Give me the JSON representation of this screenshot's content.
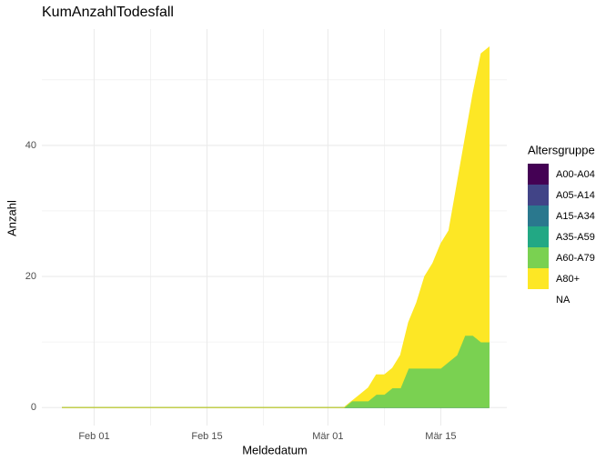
{
  "chart_data": {
    "type": "stacked_area",
    "title": "KumAnzahlTodesfall",
    "x_label": "Meldedatum",
    "y_label": "Anzahl",
    "legend_title": "Altersgruppe",
    "categories": [
      "Jan 28",
      "Jan 29",
      "Jan 30",
      "Jan 31",
      "Feb 01",
      "Feb 02",
      "Feb 03",
      "Feb 04",
      "Feb 05",
      "Feb 06",
      "Feb 07",
      "Feb 08",
      "Feb 09",
      "Feb 10",
      "Feb 11",
      "Feb 12",
      "Feb 13",
      "Feb 14",
      "Feb 15",
      "Feb 16",
      "Feb 17",
      "Feb 18",
      "Feb 19",
      "Feb 20",
      "Feb 21",
      "Feb 22",
      "Feb 23",
      "Feb 24",
      "Feb 25",
      "Feb 26",
      "Feb 27",
      "Feb 28",
      "Feb 29",
      "Mär 01",
      "Mär 02",
      "Mär 03",
      "Mär 04",
      "Mär 05",
      "Mär 06",
      "Mär 07",
      "Mär 08",
      "Mär 09",
      "Mär 10",
      "Mär 11",
      "Mär 12",
      "Mär 13",
      "Mär 14",
      "Mär 15",
      "Mär 16",
      "Mär 17",
      "Mär 18",
      "Mär 19",
      "Mär 20",
      "Mär 21"
    ],
    "xticks": [
      "Feb 01",
      "Feb 15",
      "Mär 01",
      "Mär 15"
    ],
    "xticks_minor": [
      "Feb 08",
      "Feb 22",
      "Mär 08"
    ],
    "ylim": [
      -2.75,
      57.75
    ],
    "yticks": [
      0,
      20,
      40
    ],
    "yticks_minor": [
      10,
      30,
      50
    ],
    "grid": true,
    "series": [
      {
        "name": "A00-A04",
        "color": "#440154",
        "values": [
          0,
          0,
          0,
          0,
          0,
          0,
          0,
          0,
          0,
          0,
          0,
          0,
          0,
          0,
          0,
          0,
          0,
          0,
          0,
          0,
          0,
          0,
          0,
          0,
          0,
          0,
          0,
          0,
          0,
          0,
          0,
          0,
          0,
          0,
          0,
          0,
          0,
          0,
          0,
          0,
          0,
          0,
          0,
          0,
          0,
          0,
          0,
          0,
          0,
          0,
          0,
          0,
          0,
          0
        ]
      },
      {
        "name": "A05-A14",
        "color": "#414487",
        "values": [
          0,
          0,
          0,
          0,
          0,
          0,
          0,
          0,
          0,
          0,
          0,
          0,
          0,
          0,
          0,
          0,
          0,
          0,
          0,
          0,
          0,
          0,
          0,
          0,
          0,
          0,
          0,
          0,
          0,
          0,
          0,
          0,
          0,
          0,
          0,
          0,
          0,
          0,
          0,
          0,
          0,
          0,
          0,
          0,
          0,
          0,
          0,
          0,
          0,
          0,
          0,
          0,
          0,
          0
        ]
      },
      {
        "name": "A15-A34",
        "color": "#2A788E",
        "values": [
          0,
          0,
          0,
          0,
          0,
          0,
          0,
          0,
          0,
          0,
          0,
          0,
          0,
          0,
          0,
          0,
          0,
          0,
          0,
          0,
          0,
          0,
          0,
          0,
          0,
          0,
          0,
          0,
          0,
          0,
          0,
          0,
          0,
          0,
          0,
          0,
          0,
          0,
          0,
          0,
          0,
          0,
          0,
          0,
          0,
          0,
          0,
          0,
          0,
          0,
          0,
          0,
          0,
          0
        ]
      },
      {
        "name": "A35-A59",
        "color": "#22A884",
        "values": [
          0,
          0,
          0,
          0,
          0,
          0,
          0,
          0,
          0,
          0,
          0,
          0,
          0,
          0,
          0,
          0,
          0,
          0,
          0,
          0,
          0,
          0,
          0,
          0,
          0,
          0,
          0,
          0,
          0,
          0,
          0,
          0,
          0,
          0,
          0,
          0,
          0,
          0,
          0,
          0,
          0,
          0,
          0,
          0,
          0,
          0,
          0,
          0,
          0,
          0,
          0,
          0,
          0,
          0
        ]
      },
      {
        "name": "A60-A79",
        "color": "#7AD151",
        "values": [
          0,
          0,
          0,
          0,
          0,
          0,
          0,
          0,
          0,
          0,
          0,
          0,
          0,
          0,
          0,
          0,
          0,
          0,
          0,
          0,
          0,
          0,
          0,
          0,
          0,
          0,
          0,
          0,
          0,
          0,
          0,
          0,
          0,
          0,
          0,
          0,
          1,
          1,
          1,
          2,
          2,
          3,
          3,
          6,
          6,
          6,
          6,
          6,
          7,
          8,
          11,
          11,
          10,
          10
        ]
      },
      {
        "name": "A80+",
        "color": "#FDE725",
        "values": [
          0,
          0,
          0,
          0,
          0,
          0,
          0,
          0,
          0,
          0,
          0,
          0,
          0,
          0,
          0,
          0,
          0,
          0,
          0,
          0,
          0,
          0,
          0,
          0,
          0,
          0,
          0,
          0,
          0,
          0,
          0,
          0,
          0,
          0,
          0,
          0,
          0,
          1,
          2,
          3,
          3,
          3,
          5,
          7,
          10,
          14,
          16,
          19,
          20,
          26,
          30,
          37,
          44,
          45
        ]
      },
      {
        "name": "NA",
        "color": null,
        "values": [
          0,
          0,
          0,
          0,
          0,
          0,
          0,
          0,
          0,
          0,
          0,
          0,
          0,
          0,
          0,
          0,
          0,
          0,
          0,
          0,
          0,
          0,
          0,
          0,
          0,
          0,
          0,
          0,
          0,
          0,
          0,
          0,
          0,
          0,
          0,
          0,
          0,
          0,
          0,
          0,
          0,
          0,
          0,
          0,
          0,
          0,
          0,
          0,
          0,
          0,
          0,
          0,
          0,
          0
        ]
      }
    ]
  }
}
